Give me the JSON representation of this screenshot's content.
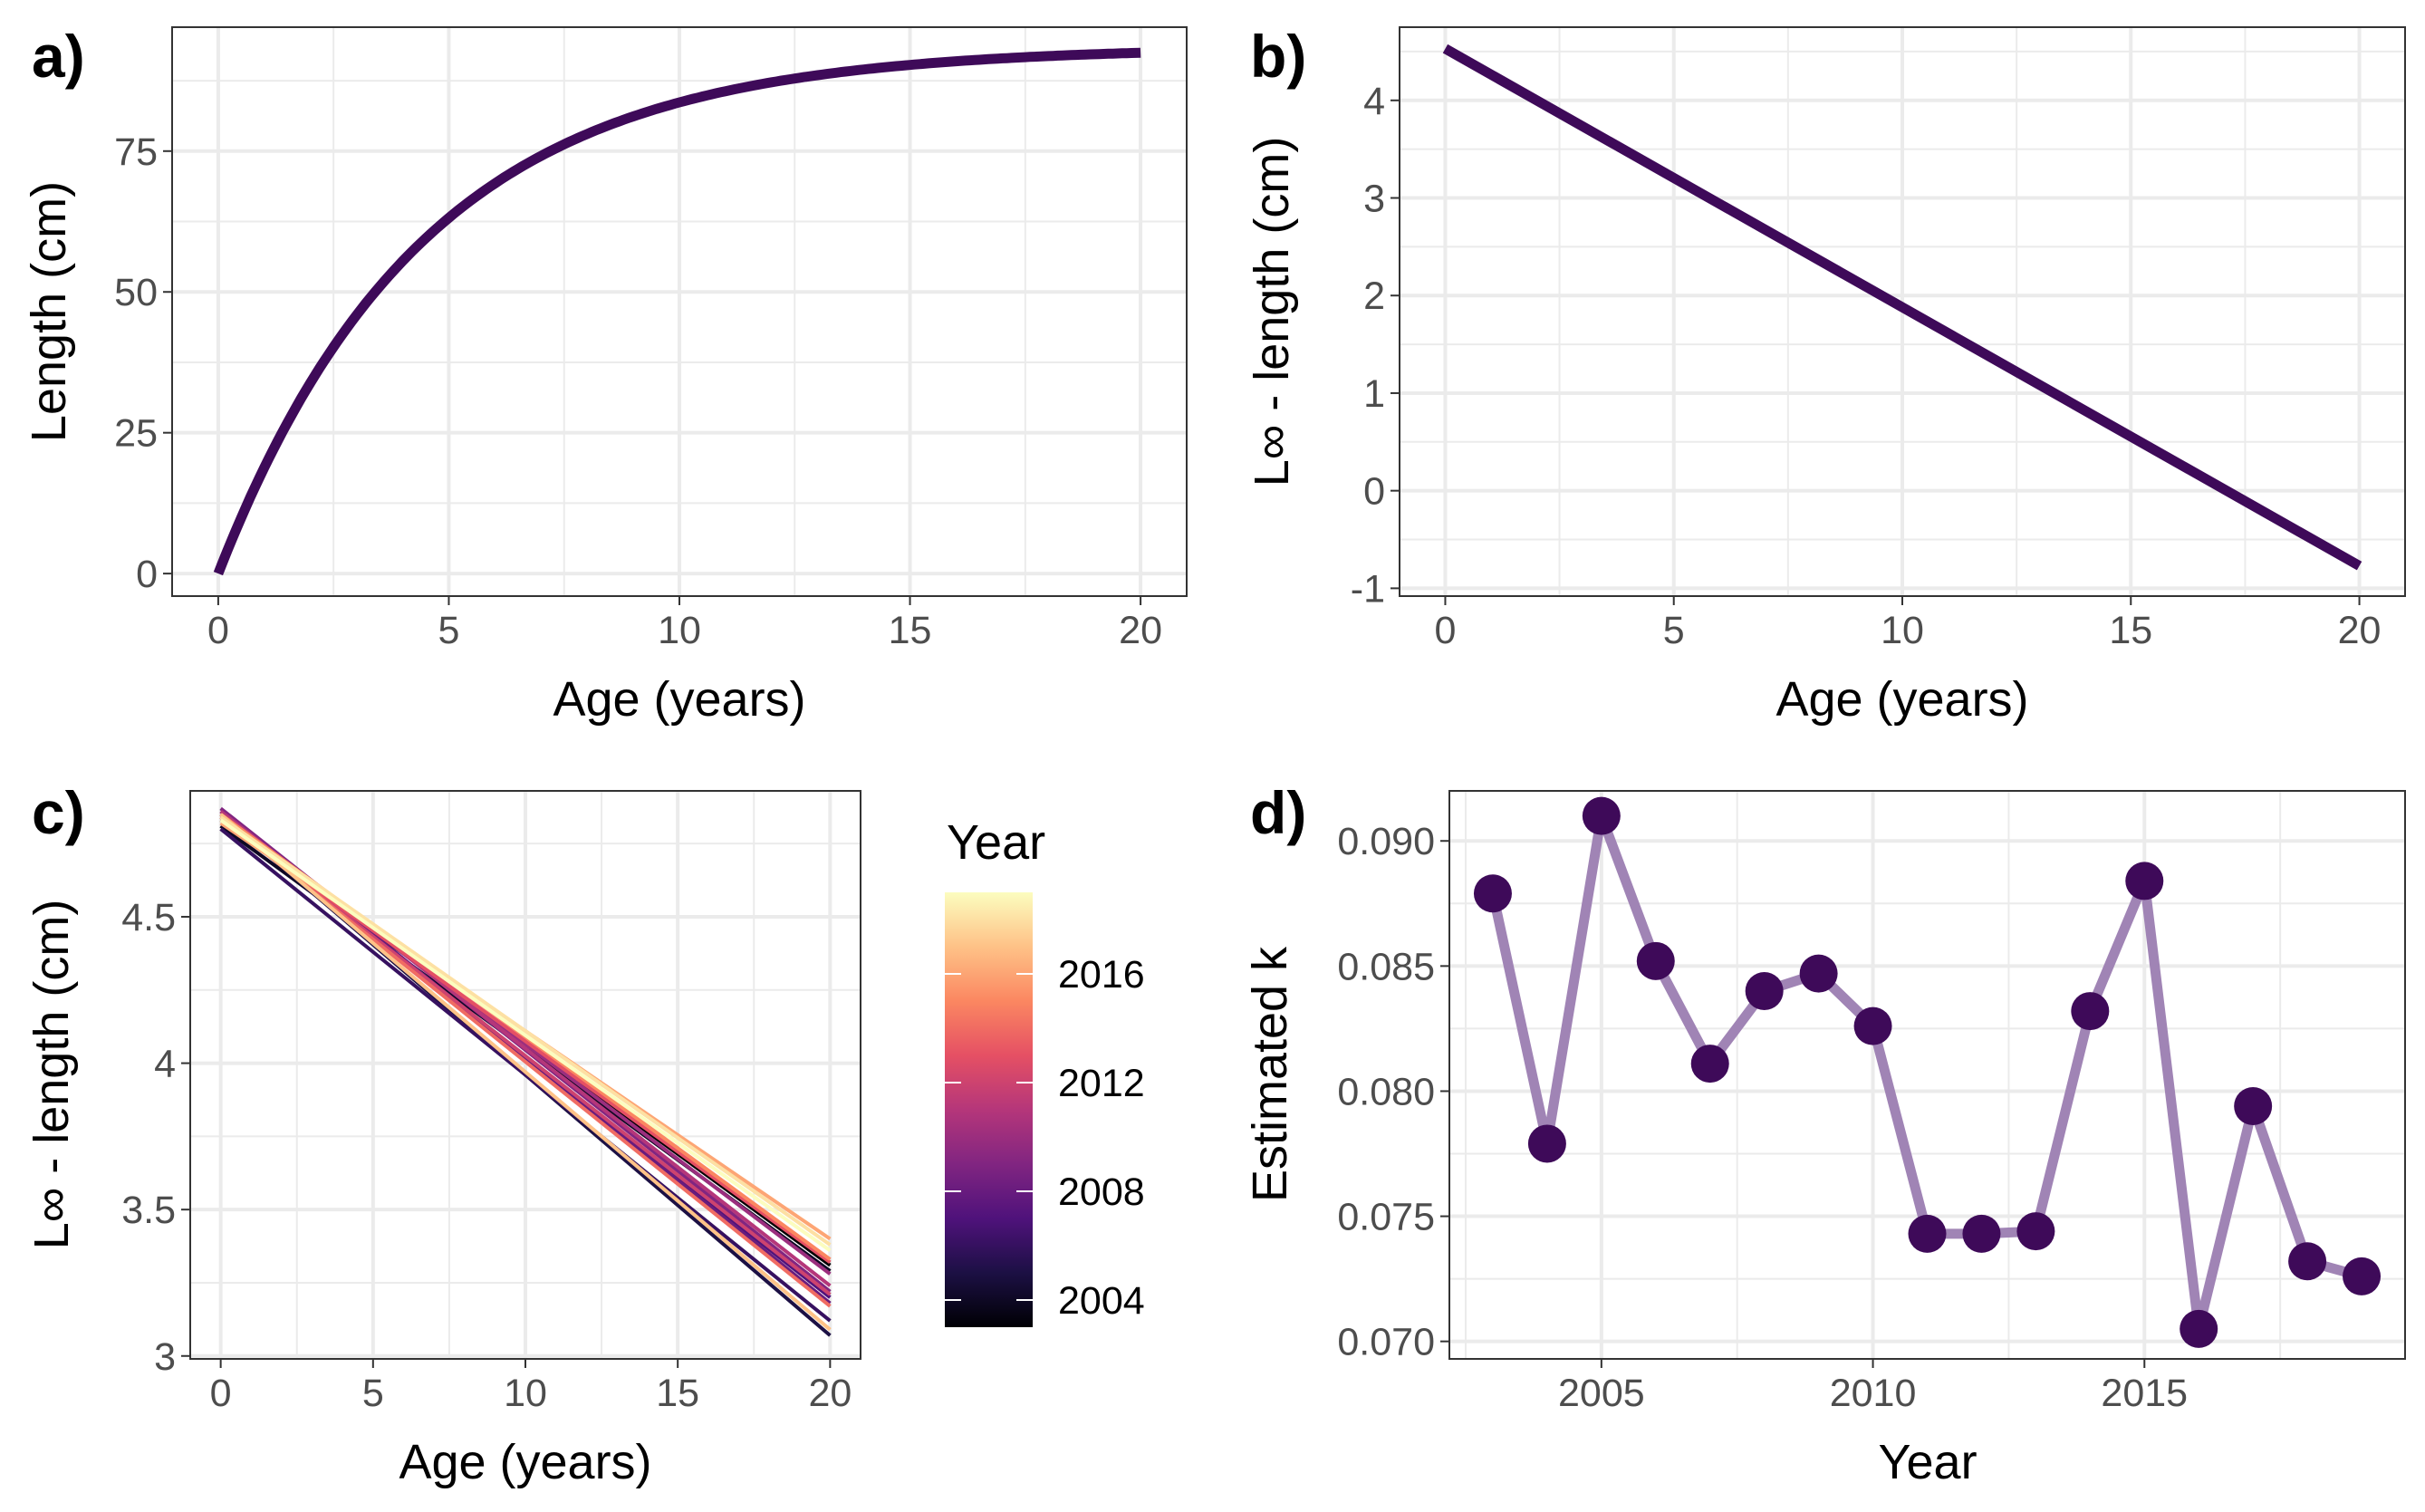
{
  "colors": {
    "line_dark": "#3e0a59",
    "point": "#3e0a59",
    "line_light": "#a084b5",
    "grid": "#ebebeb",
    "frame": "#333333"
  },
  "chart_data": [
    {
      "panel": "a)",
      "type": "line",
      "xlabel": "Age (years)",
      "ylabel": "Length (cm)",
      "xlim": [
        -1,
        21
      ],
      "ylim": [
        -4,
        97
      ],
      "xticks": [
        0,
        5,
        10,
        15,
        20
      ],
      "yticks": [
        0,
        25,
        50,
        75
      ],
      "grid": true,
      "linf": 93.5,
      "k": 0.225,
      "x": [
        0,
        1,
        2,
        3,
        4,
        5,
        6,
        7,
        8,
        9,
        10,
        11,
        12,
        13,
        14,
        15,
        16,
        17,
        18,
        19,
        20
      ],
      "y": [
        0.0,
        18.8,
        33.9,
        45.9,
        55.5,
        63.2,
        69.3,
        74.2,
        78.2,
        81.3,
        83.8,
        85.8,
        87.4,
        88.7,
        89.7,
        90.5,
        91.2,
        91.7,
        92.1,
        92.4,
        92.7
      ]
    },
    {
      "panel": "b)",
      "type": "line",
      "xlabel": "Age (years)",
      "ylabel": "L∞ - length (cm)",
      "xlim": [
        -1,
        21
      ],
      "ylim": [
        -1.08,
        4.75
      ],
      "xticks": [
        0,
        5,
        10,
        15,
        20
      ],
      "yticks": [
        -1,
        0,
        1,
        2,
        3,
        4
      ],
      "grid": true,
      "x": [
        0,
        20
      ],
      "y": [
        4.53,
        -0.77
      ]
    },
    {
      "panel": "c)",
      "type": "line",
      "xlabel": "Age (years)",
      "ylabel": "L∞ - length (cm)",
      "legend_title": "Year",
      "legend_position": "right",
      "colorbar_ticks": [
        2004,
        2008,
        2012,
        2016
      ],
      "colorbar_range": [
        2003,
        2019
      ],
      "xlim": [
        -1,
        21
      ],
      "ylim": [
        2.99,
        4.93
      ],
      "xticks": [
        0,
        5,
        10,
        15,
        20
      ],
      "yticks": [
        3.0,
        3.5,
        4.0,
        4.5
      ],
      "grid": true,
      "x": [
        0,
        20
      ],
      "series": [
        {
          "year": 2003,
          "y0": 4.83,
          "y1": 3.31
        },
        {
          "year": 2004,
          "y0": 4.81,
          "y1": 3.29
        },
        {
          "year": 2005,
          "y0": 4.85,
          "y1": 3.07
        },
        {
          "year": 2006,
          "y0": 4.8,
          "y1": 3.12
        },
        {
          "year": 2007,
          "y0": 4.84,
          "y1": 3.2
        },
        {
          "year": 2008,
          "y0": 4.86,
          "y1": 3.18
        },
        {
          "year": 2009,
          "y0": 4.87,
          "y1": 3.22
        },
        {
          "year": 2010,
          "y0": 4.85,
          "y1": 3.28
        },
        {
          "year": 2011,
          "y0": 4.86,
          "y1": 3.24
        },
        {
          "year": 2012,
          "y0": 4.84,
          "y1": 3.21
        },
        {
          "year": 2013,
          "y0": 4.83,
          "y1": 3.32
        },
        {
          "year": 2014,
          "y0": 4.84,
          "y1": 3.17
        },
        {
          "year": 2015,
          "y0": 4.85,
          "y1": 3.33
        },
        {
          "year": 2016,
          "y0": 4.82,
          "y1": 3.4
        },
        {
          "year": 2017,
          "y0": 4.85,
          "y1": 3.09
        },
        {
          "year": 2018,
          "y0": 4.84,
          "y1": 3.38
        },
        {
          "year": 2019,
          "y0": 4.83,
          "y1": 3.36
        }
      ]
    },
    {
      "panel": "d)",
      "type": "line",
      "markers": true,
      "xlabel": "Year",
      "ylabel": "Estimated k",
      "xlim": [
        2002.2,
        2019.8
      ],
      "ylim": [
        0.0693,
        0.092
      ],
      "xticks": [
        2005,
        2010,
        2015
      ],
      "yticks": [
        0.07,
        0.075,
        0.08,
        0.085,
        0.09
      ],
      "ytick_labels": [
        "0.070",
        "0.075",
        "0.080",
        "0.085",
        "0.090"
      ],
      "grid": true,
      "x": [
        2003,
        2004,
        2005,
        2006,
        2007,
        2008,
        2009,
        2010,
        2011,
        2012,
        2013,
        2014,
        2015,
        2016,
        2017,
        2018,
        2019
      ],
      "y": [
        0.0879,
        0.0779,
        0.091,
        0.0852,
        0.0811,
        0.084,
        0.0847,
        0.0826,
        0.0743,
        0.0743,
        0.0744,
        0.0832,
        0.0884,
        0.0705,
        0.0794,
        0.0732,
        0.0726
      ]
    }
  ]
}
